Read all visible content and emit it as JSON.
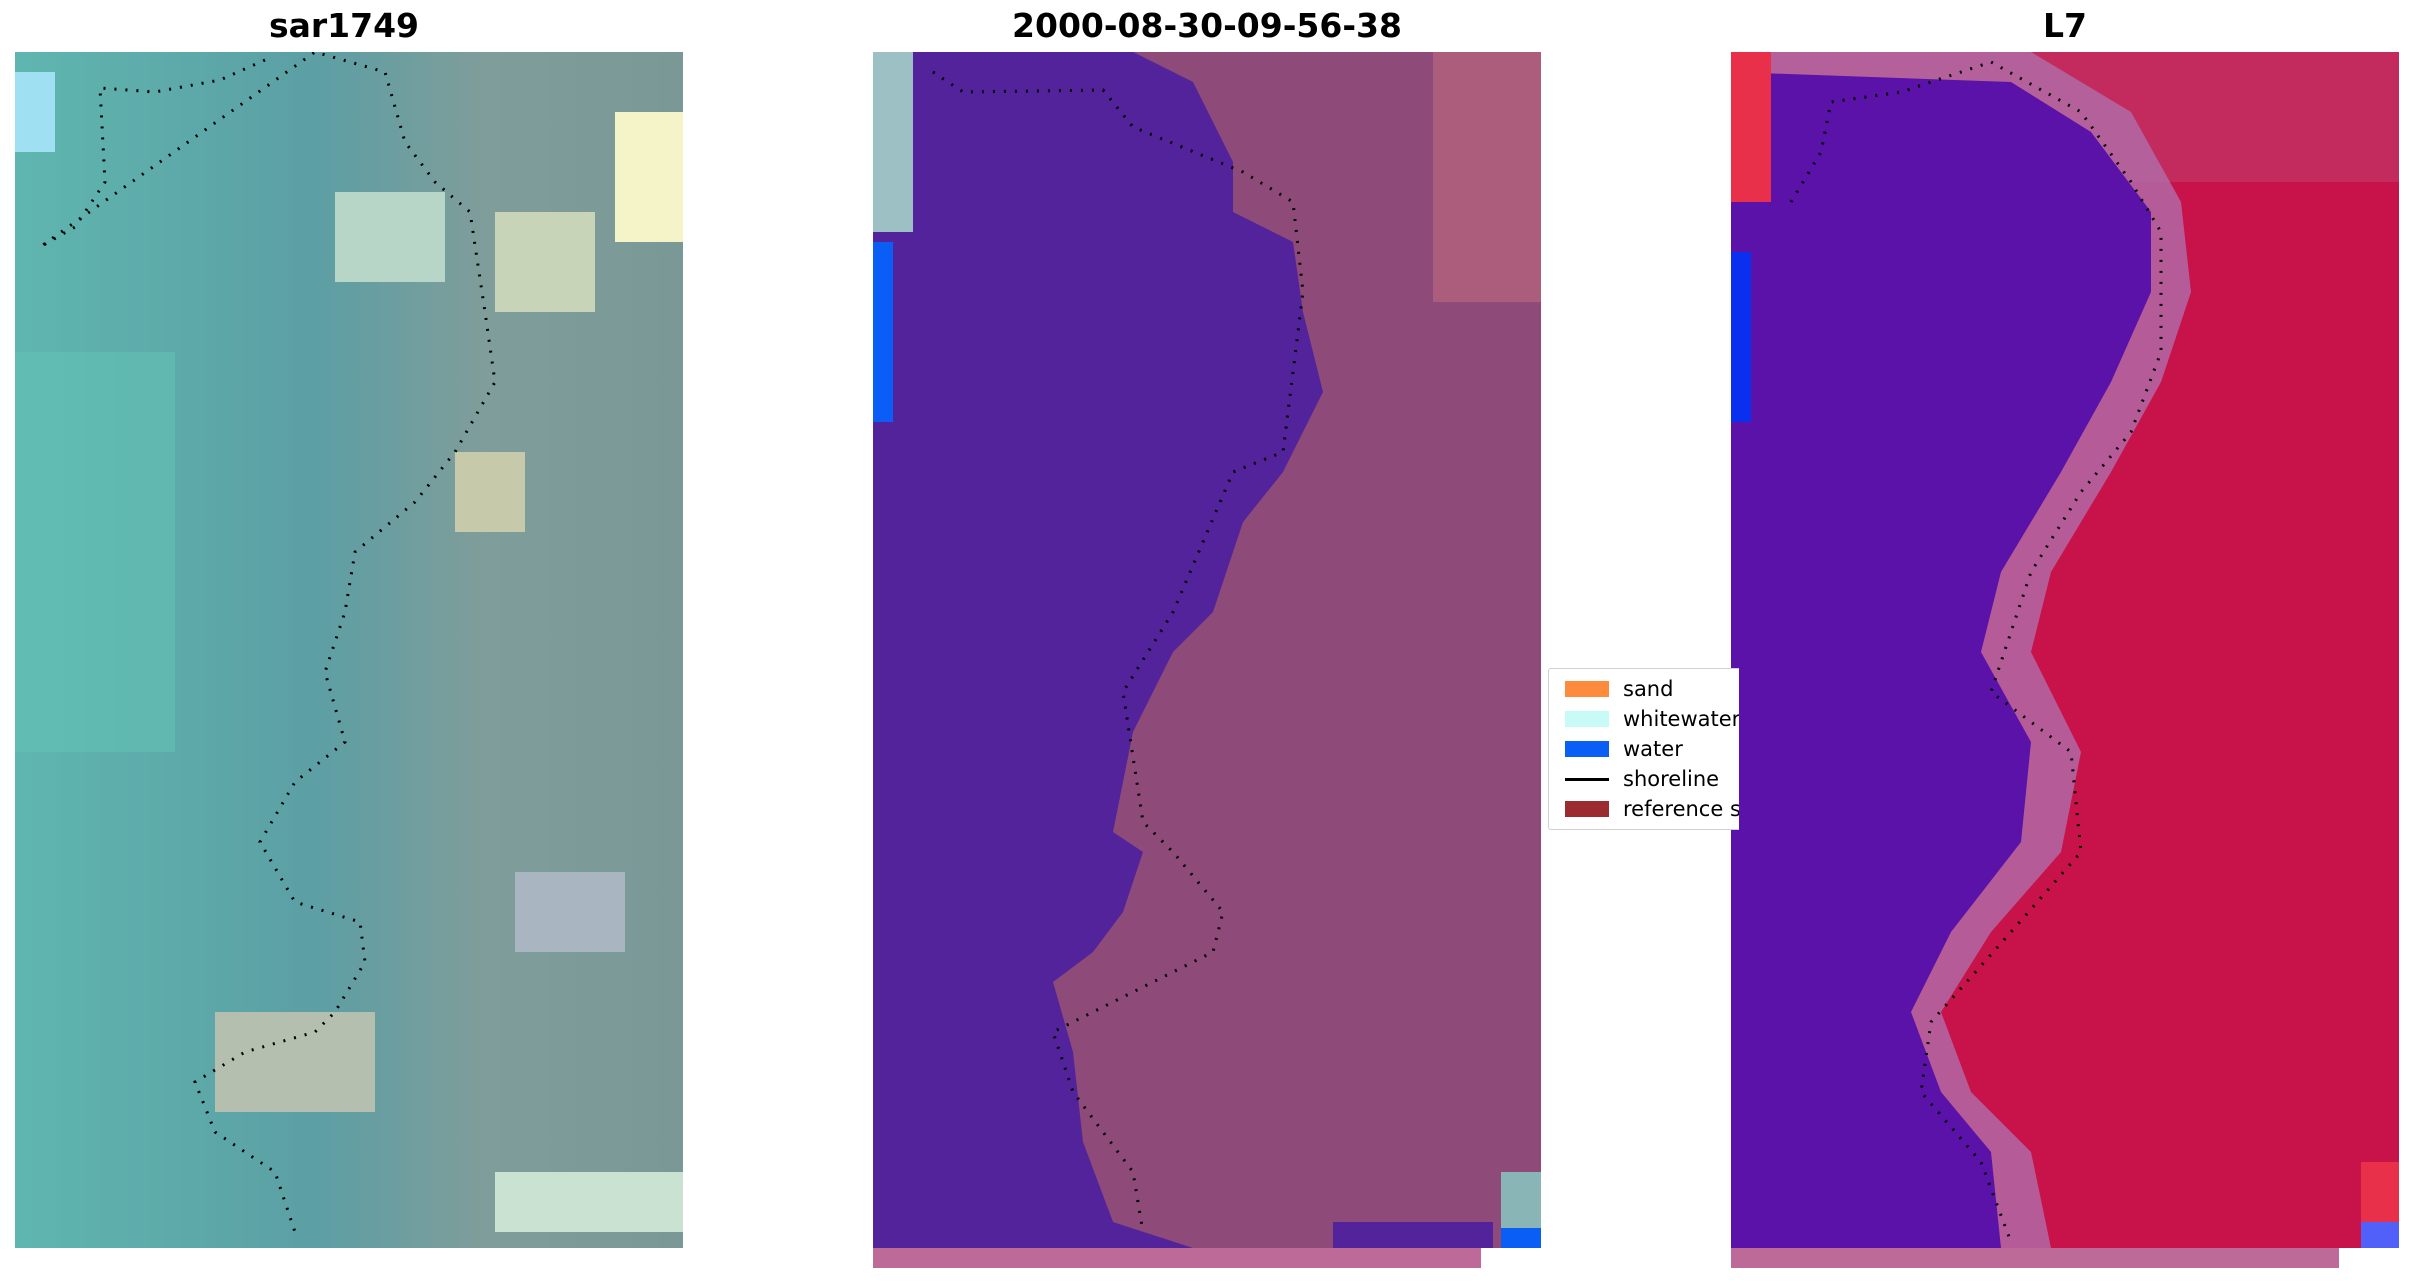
{
  "panels": [
    {
      "title": "sar1749"
    },
    {
      "title": "2000-08-30-09-56-38"
    },
    {
      "title": "L7"
    }
  ],
  "legend": {
    "items": [
      {
        "label": "sand",
        "color": "#fe8a3c",
        "kind": "patch"
      },
      {
        "label": "whitewater",
        "color": "#c8fbf7",
        "kind": "patch"
      },
      {
        "label": "water",
        "color": "#0a5df5",
        "kind": "patch"
      },
      {
        "label": "shoreline",
        "color": "#000000",
        "kind": "line"
      },
      {
        "label": "reference s",
        "color": "#9b2b2f",
        "kind": "patch"
      }
    ]
  },
  "colors": {
    "rgb_water": "#5fa8a6",
    "rgb_land": "#7d9a96",
    "classified_water_overlay": "#52239a",
    "classified_land": "#8e4a78",
    "mndwi_water": "#5b12a8",
    "mndwi_land": "#c8124a"
  }
}
